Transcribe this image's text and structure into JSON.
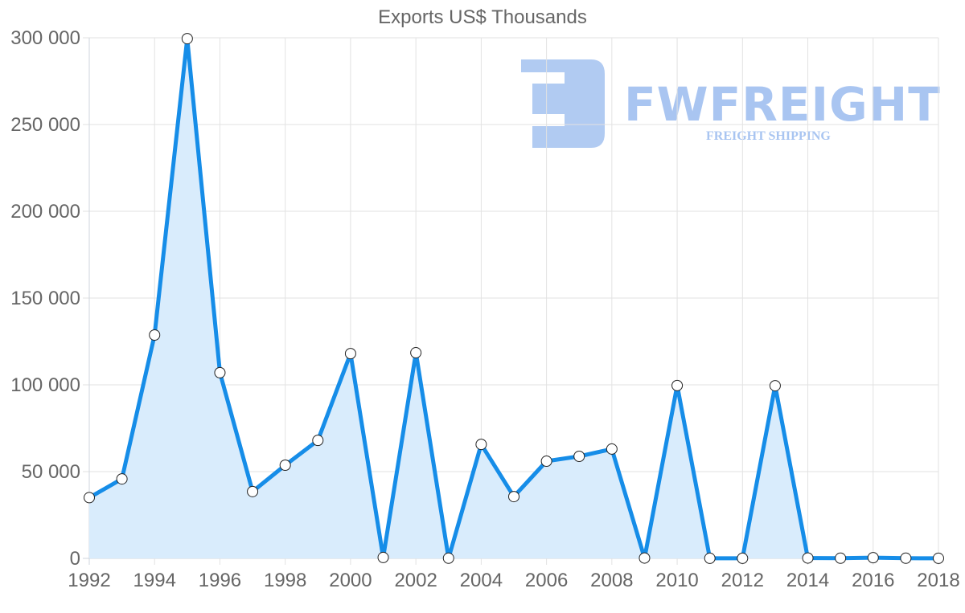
{
  "chart_data": {
    "type": "line",
    "title": "Exports US$ Thousands",
    "xlabel": "",
    "ylabel": "",
    "ylim": [
      0,
      300000
    ],
    "yticks": [
      "0",
      "50 000",
      "100 000",
      "150 000",
      "200 000",
      "250 000",
      "300 000"
    ],
    "xticks": [
      "1992",
      "1994",
      "1996",
      "1998",
      "2000",
      "2002",
      "2004",
      "2006",
      "2008",
      "2010",
      "2012",
      "2014",
      "2016",
      "2018"
    ],
    "grid": true,
    "legend": null,
    "fill": true,
    "x": [
      1992,
      1993,
      1994,
      1995,
      1996,
      1997,
      1998,
      1999,
      2000,
      2001,
      2002,
      2003,
      2004,
      2005,
      2006,
      2007,
      2008,
      2009,
      2010,
      2011,
      2012,
      2013,
      2014,
      2015,
      2016,
      2017,
      2018
    ],
    "series": [
      {
        "name": "Exports",
        "color": "#168de8",
        "fill_color": "#d9ecfc",
        "values": [
          35000,
          45800,
          128700,
          299500,
          107000,
          38500,
          53700,
          68000,
          118000,
          500,
          118500,
          100,
          65700,
          35600,
          56000,
          58800,
          63000,
          200,
          99600,
          50,
          30,
          99500,
          200,
          100,
          400,
          100,
          50
        ]
      }
    ]
  },
  "watermark": {
    "brand": "FWFREIGHT",
    "tagline": "FREIGHT SHIPPING",
    "color": "#a9c5f1"
  }
}
